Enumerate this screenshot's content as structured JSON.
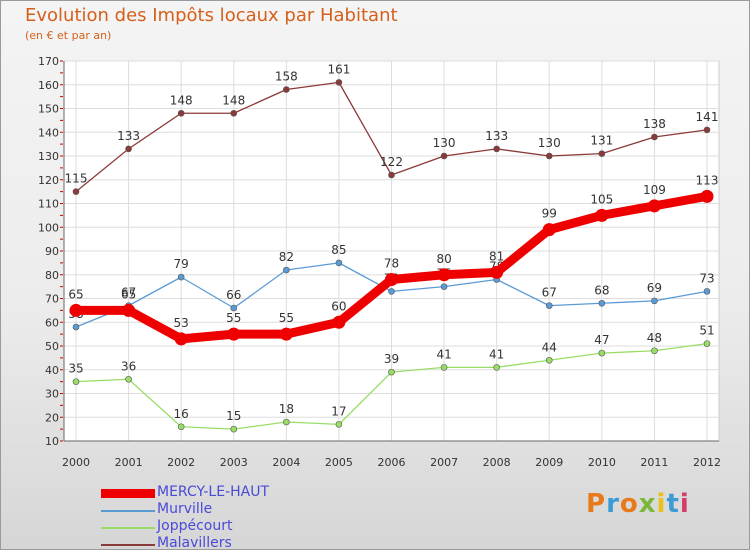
{
  "title": "Evolution des Impôts locaux par Habitant",
  "subtitle": "(en € et par an)",
  "logo": "Proxiti",
  "logo_colors": [
    "#e87a1a",
    "#3c9bd4",
    "#e87a1a",
    "#7ab83a",
    "#e8c21a",
    "#3c9bd4",
    "#d43c6a"
  ],
  "chart_data": {
    "type": "line",
    "title": "Evolution des Impôts locaux par Habitant",
    "subtitle": "(en € et par an)",
    "x": [
      "2000",
      "2001",
      "2002",
      "2003",
      "2004",
      "2005",
      "2006",
      "2007",
      "2008",
      "2009",
      "2010",
      "2011",
      "2012"
    ],
    "ylim": [
      10,
      170
    ],
    "yticks": [
      10,
      20,
      30,
      40,
      50,
      60,
      70,
      80,
      90,
      100,
      110,
      120,
      130,
      140,
      150,
      160,
      170
    ],
    "grid": true,
    "legend_position": "bottom-left",
    "series": [
      {
        "name": "MERCY-LE-HAUT",
        "color": "#ee0000",
        "emphasis": true,
        "values": [
          65,
          65,
          53,
          55,
          55,
          60,
          78,
          80,
          81,
          99,
          105,
          109,
          113
        ]
      },
      {
        "name": "Murville",
        "color": "#5b9bd5",
        "emphasis": false,
        "values": [
          58,
          67,
          79,
          66,
          82,
          85,
          73,
          75,
          78,
          67,
          68,
          69,
          73
        ]
      },
      {
        "name": "Joppécourt",
        "color": "#99dd66",
        "emphasis": false,
        "values": [
          35,
          36,
          16,
          15,
          18,
          17,
          39,
          41,
          41,
          44,
          47,
          48,
          51
        ]
      },
      {
        "name": "Malavillers",
        "color": "#8b3a3a",
        "emphasis": false,
        "values": [
          115,
          133,
          148,
          148,
          158,
          161,
          122,
          130,
          133,
          130,
          131,
          138,
          141
        ]
      }
    ]
  }
}
